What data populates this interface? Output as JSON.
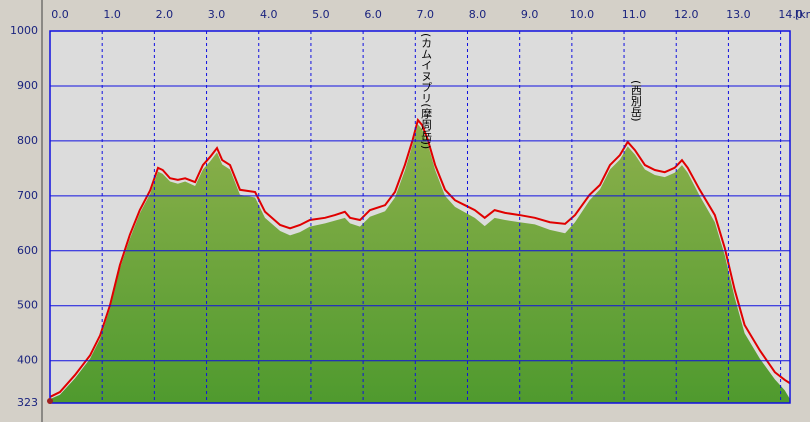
{
  "chart_data": {
    "type": "area",
    "xlabel": "[km]",
    "x": [
      0.0,
      0.19,
      0.48,
      0.77,
      0.96,
      1.15,
      1.34,
      1.53,
      1.72,
      1.92,
      2.07,
      2.16,
      2.3,
      2.45,
      2.59,
      2.78,
      2.93,
      3.07,
      3.2,
      3.3,
      3.45,
      3.64,
      3.93,
      4.12,
      4.41,
      4.6,
      4.79,
      4.98,
      5.27,
      5.46,
      5.65,
      5.75,
      5.94,
      6.13,
      6.42,
      6.61,
      6.8,
      6.95,
      7.05,
      7.13,
      7.24,
      7.38,
      7.57,
      7.76,
      7.95,
      8.14,
      8.33,
      8.52,
      8.72,
      9.0,
      9.29,
      9.58,
      9.87,
      10.06,
      10.34,
      10.54,
      10.73,
      10.92,
      11.07,
      11.21,
      11.4,
      11.59,
      11.78,
      11.97,
      12.11,
      12.22,
      12.45,
      12.74,
      12.93,
      13.12,
      13.31,
      13.6,
      13.89,
      14.08,
      14.18
    ],
    "series": [
      {
        "color": "#6f9f3a",
        "values": [
          330,
          338,
          368,
          404,
          440,
          495,
          568,
          622,
          668,
          704,
          744,
          740,
          726,
          722,
          726,
          718,
          748,
          763,
          779,
          757,
          748,
          702,
          697,
          660,
          636,
          628,
          634,
          644,
          650,
          655,
          660,
          650,
          644,
          662,
          672,
          697,
          746,
          794,
          830,
          821,
          794,
          747,
          700,
          680,
          670,
          660,
          645,
          660,
          656,
          652,
          648,
          638,
          632,
          652,
          692,
          712,
          748,
          766,
          790,
          775,
          748,
          738,
          734,
          742,
          756,
          742,
          700,
          652,
          592,
          515,
          450,
          404,
          366,
          346,
          330
        ]
      },
      {
        "color": "#e00000",
        "values": [
          334,
          343,
          374,
          410,
          446,
          501,
          574,
          629,
          674,
          710,
          751,
          747,
          732,
          729,
          732,
          725,
          756,
          771,
          787,
          765,
          756,
          711,
          707,
          671,
          647,
          641,
          647,
          656,
          660,
          665,
          671,
          660,
          656,
          674,
          683,
          707,
          756,
          802,
          838,
          829,
          802,
          756,
          711,
          692,
          683,
          674,
          660,
          674,
          669,
          665,
          660,
          652,
          649,
          665,
          702,
          720,
          756,
          774,
          798,
          783,
          756,
          747,
          743,
          751,
          765,
          751,
          711,
          665,
          605,
          529,
          465,
          419,
          379,
          365,
          359
        ]
      }
    ],
    "annotations": [
      {
        "text": "(カムイヌプリ(摩周岳))",
        "x": 7.13
      },
      {
        "text": "(西別岳)",
        "x": 11.15
      }
    ],
    "xlim": [
      0,
      14.18
    ],
    "ylim": [
      323,
      1000
    ],
    "xticks": [
      {
        "value": 0,
        "label": "0.0"
      },
      {
        "value": 1,
        "label": "1.0"
      },
      {
        "value": 2,
        "label": "2.0"
      },
      {
        "value": 3,
        "label": "3.0"
      },
      {
        "value": 4,
        "label": "4.0"
      },
      {
        "value": 5,
        "label": "5.0"
      },
      {
        "value": 6,
        "label": "6.0"
      },
      {
        "value": 7,
        "label": "7.0"
      },
      {
        "value": 8,
        "label": "8.0"
      },
      {
        "value": 9,
        "label": "9.0"
      },
      {
        "value": 10,
        "label": "10.0"
      },
      {
        "value": 11,
        "label": "11.0"
      },
      {
        "value": 12,
        "label": "12.0"
      },
      {
        "value": 13,
        "label": "13.0"
      },
      {
        "value": 14,
        "label": "14.0"
      }
    ],
    "yticks": [
      323,
      400,
      500,
      600,
      700,
      800,
      900,
      1000
    ],
    "grid": true
  }
}
